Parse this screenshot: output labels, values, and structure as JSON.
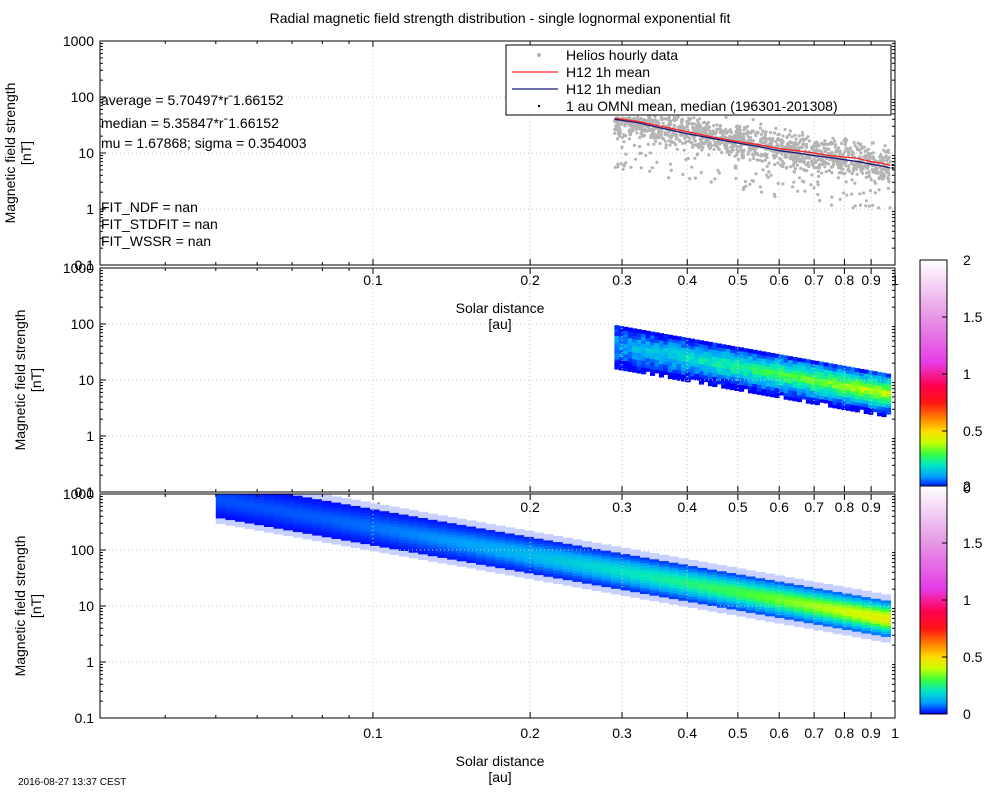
{
  "title": "Radial magnetic field strength distribution  -  single lognormal exponential fit",
  "footer": "2016-08-27 13:37 CEST",
  "colors": {
    "scatter": "#b4b4b4",
    "mean": "#ff2020",
    "median": "#1a1a7a",
    "grid": "#c8c8c8",
    "density_low": "#0a14ff",
    "density_mid": "#00e0e0",
    "density_high": "#40ff20"
  },
  "chart_data": [
    {
      "type": "scatter",
      "title": "Radial magnetic field strength distribution  -  single lognormal exponential fit",
      "xlabel": "Solar distance",
      "xunit": "[au]",
      "ylabel": "Magnetic field strength",
      "yunit": "[nT]",
      "xscale": "log",
      "yscale": "log",
      "xlim": [
        0.03,
        1.0
      ],
      "ylim": [
        0.1,
        1000
      ],
      "xticks": [
        0.1,
        0.2,
        0.3,
        0.4,
        0.5,
        0.6,
        0.7,
        0.8,
        0.9,
        1
      ],
      "xtick_labels": [
        "0.1",
        "0.2",
        "0.3",
        "0.4",
        "0.5",
        "0.6",
        "0.7",
        "0.8",
        "0.9",
        "1"
      ],
      "yticks": [
        0.1,
        1,
        10,
        100,
        1000
      ],
      "ytick_labels": [
        "0.1",
        "1",
        "10",
        "100",
        "1000"
      ],
      "grid": true,
      "legend_position": "top-right",
      "legend": [
        "Helios hourly data",
        "H12 1h mean",
        "H12 1h median",
        "1 au OMNI mean, median (196301-201308)"
      ],
      "annotations": [
        "average = 5.70497*rˉ1.66152",
        "median = 5.35847*rˉ1.66152",
        "mu = 1.67868; sigma = 0.354003",
        "FIT_NDF = nan",
        "FIT_STDFIT = nan",
        "FIT_WSSR = nan"
      ],
      "series": [
        {
          "name": "H12 1h mean",
          "x": [
            0.29,
            0.32,
            0.35,
            0.4,
            0.45,
            0.5,
            0.55,
            0.6,
            0.65,
            0.7,
            0.75,
            0.8,
            0.85,
            0.9,
            0.95,
            0.98
          ],
          "y": [
            42,
            37,
            31,
            24,
            19,
            16,
            14,
            12,
            11,
            10,
            9,
            8.5,
            8,
            7,
            6.5,
            6
          ]
        },
        {
          "name": "H12 1h median",
          "x": [
            0.29,
            0.32,
            0.35,
            0.4,
            0.45,
            0.5,
            0.55,
            0.6,
            0.65,
            0.7,
            0.75,
            0.8,
            0.85,
            0.9,
            0.95,
            0.98
          ],
          "y": [
            40,
            35,
            29,
            22,
            18,
            15,
            13,
            11,
            10,
            9,
            8.3,
            7.6,
            7,
            6.3,
            5.8,
            5.4
          ]
        },
        {
          "name": "Helios hourly data",
          "x_range": [
            0.29,
            0.98
          ],
          "y_range": [
            1,
            45
          ]
        },
        {
          "name": "1 au OMNI mean, median (196301-201308)",
          "x": [
            0.99,
            0.99
          ],
          "y": [
            6.1,
            5.4
          ]
        }
      ]
    },
    {
      "type": "heatmap",
      "xlabel": "Solar distance",
      "xunit": "[au]",
      "ylabel": "Magnetic field strength",
      "yunit": "[nT]",
      "xscale": "log",
      "yscale": "log",
      "xlim": [
        0.03,
        1.0
      ],
      "ylim": [
        0.1,
        1000
      ],
      "xticks": [
        0.1,
        0.2,
        0.3,
        0.4,
        0.5,
        0.6,
        0.7,
        0.8,
        0.9
      ],
      "xtick_labels": [
        "0.1",
        "0.2",
        "0.3",
        "0.4",
        "0.5",
        "0.6",
        "0.7",
        "0.8",
        "0.9"
      ],
      "yticks": [
        0.1,
        1,
        10,
        100,
        1000
      ],
      "ytick_labels": [
        "0.1",
        "1",
        "10",
        "100",
        "1000"
      ],
      "colorbar_ticks": [
        0,
        0.5,
        1,
        1.5,
        2
      ],
      "colorbar_labels": [
        "0",
        "0.5",
        "1",
        "1.5",
        "2"
      ],
      "x_range": [
        0.29,
        0.98
      ],
      "y_center": [
        35,
        5
      ],
      "y_spread": [
        1,
        60
      ]
    },
    {
      "type": "heatmap",
      "xlabel": "Solar distance",
      "xunit": "[au]",
      "ylabel": "Magnetic field strength",
      "yunit": "[nT]",
      "xscale": "log",
      "yscale": "log",
      "xlim": [
        0.03,
        1.0
      ],
      "ylim": [
        0.1,
        1000
      ],
      "xticks": [
        0.1,
        0.2,
        0.3,
        0.4,
        0.5,
        0.6,
        0.7,
        0.8,
        0.9,
        1
      ],
      "xtick_labels": [
        "0.1",
        "0.2",
        "0.3",
        "0.4",
        "0.5",
        "0.6",
        "0.7",
        "0.8",
        "0.9",
        "1"
      ],
      "yticks": [
        0.1,
        1,
        10,
        100,
        1000
      ],
      "ytick_labels": [
        "0.1",
        "1",
        "10",
        "100",
        "1000"
      ],
      "colorbar_ticks": [
        0,
        0.5,
        1,
        1.5,
        2
      ],
      "colorbar_labels": [
        "0",
        "0.5",
        "1",
        "1.5",
        "2"
      ],
      "model_coefficient": 5.35847,
      "model_exponent": -1.66152,
      "sigma": 0.354003,
      "x_range": [
        0.05,
        0.98
      ]
    }
  ]
}
